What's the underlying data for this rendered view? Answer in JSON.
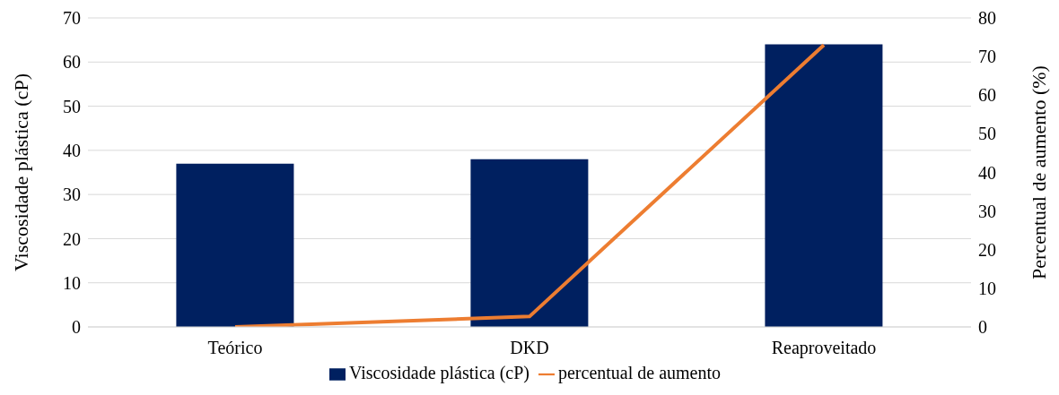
{
  "chart_data": {
    "type": "bar",
    "categories": [
      "Teórico",
      "DKD",
      "Reaproveitado"
    ],
    "series": [
      {
        "name": "Viscosidade plástica (cP)",
        "color": "#002060",
        "values": [
          37,
          38,
          64
        ]
      },
      {
        "name": "percentual de aumento",
        "color": "#ed7d31",
        "type": "line",
        "axis": "y2",
        "values": [
          0,
          2.7,
          73
        ]
      }
    ],
    "ylabel": "Viscosidade plástica (cP)",
    "y2label": "Percentual de aumento (%)",
    "ylim": [
      0,
      70
    ],
    "yticks": [
      0,
      10,
      20,
      30,
      40,
      50,
      60,
      70
    ],
    "y2lim": [
      0,
      80
    ],
    "y2ticks": [
      0,
      10,
      20,
      30,
      40,
      50,
      60,
      70,
      80
    ],
    "grid": "y",
    "legend": "bottom",
    "marker": "none"
  }
}
